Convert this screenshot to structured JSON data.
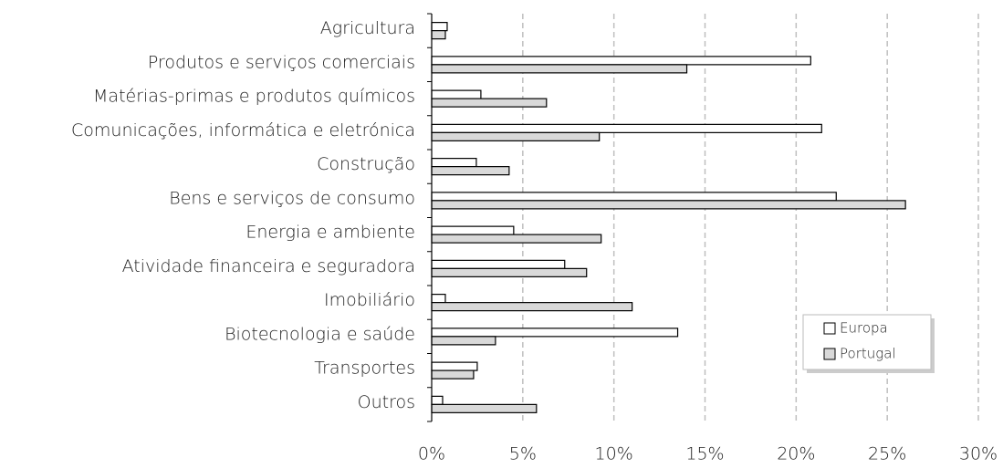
{
  "chart_data": {
    "type": "bar",
    "orientation": "horizontal",
    "categories": [
      "Agricultura",
      "Produtos e serviços comerciais",
      "Matérias-primas e produtos químicos",
      "Comunicações, informática e eletrónica",
      "Construção",
      "Bens e serviços de consumo",
      "Energia e ambiente",
      "Atividade financeira e seguradora",
      "Imobiliário",
      "Biotecnologia e saúde",
      "Transportes",
      "Outros"
    ],
    "series": [
      {
        "name": "Europa",
        "color": "#ffffff",
        "values": [
          0.85,
          20.8,
          2.7,
          21.4,
          2.45,
          22.2,
          4.5,
          7.3,
          0.75,
          13.5,
          2.5,
          0.6
        ]
      },
      {
        "name": "Portugal",
        "color": "#d9d9d9",
        "values": [
          0.75,
          14.0,
          6.3,
          9.2,
          4.25,
          26.0,
          9.3,
          8.5,
          11.0,
          3.5,
          2.3,
          5.75
        ]
      }
    ],
    "xlim": [
      0,
      30
    ],
    "xticks": [
      {
        "value": 0,
        "label": "0%"
      },
      {
        "value": 5,
        "label": "5%"
      },
      {
        "value": 10,
        "label": "10%"
      },
      {
        "value": 15,
        "label": "15%"
      },
      {
        "value": 20,
        "label": "20%"
      },
      {
        "value": 25,
        "label": "25%"
      },
      {
        "value": 30,
        "label": "30%"
      }
    ],
    "grid": true,
    "legend": "lower right"
  }
}
